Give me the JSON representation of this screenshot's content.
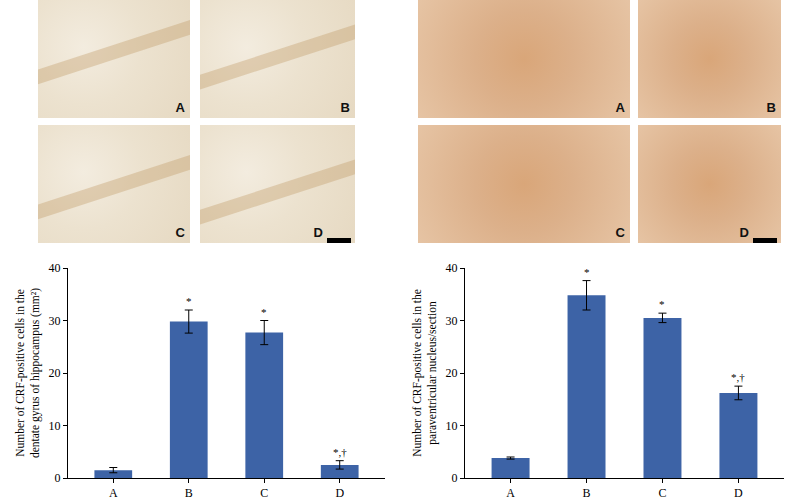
{
  "chart_data": [
    {
      "type": "bar",
      "image_panels": [
        "A",
        "B",
        "C",
        "D"
      ],
      "ylabel": [
        "Number of CRF-positive cells in the",
        "dentate gyrus of hippocampus (mm²)"
      ],
      "categories": [
        "A",
        "B",
        "C",
        "D"
      ],
      "values": [
        1.5,
        29.8,
        27.7,
        2.5
      ],
      "errors": [
        0.5,
        2.2,
        2.3,
        0.8
      ],
      "annotations": [
        {
          "category": "B",
          "text": "*"
        },
        {
          "category": "C",
          "text": "*"
        },
        {
          "category": "D",
          "text": "*,†"
        }
      ],
      "color": "#3d63a6",
      "ylim": [
        0,
        40
      ],
      "yticks": [
        0,
        10,
        20,
        30,
        40
      ],
      "grid": false
    },
    {
      "type": "bar",
      "image_panels": [
        "A",
        "B",
        "C",
        "D"
      ],
      "ylabel": [
        "Number of CRF-positive cells in the",
        "paraventricular nucleus/section"
      ],
      "categories": [
        "A",
        "B",
        "C",
        "D"
      ],
      "values": [
        3.8,
        34.8,
        30.5,
        16.2
      ],
      "errors": [
        0.2,
        2.8,
        0.9,
        1.3
      ],
      "annotations": [
        {
          "category": "B",
          "text": "*"
        },
        {
          "category": "C",
          "text": "*"
        },
        {
          "category": "D",
          "text": "*,†"
        }
      ],
      "color": "#3d63a6",
      "ylim": [
        0,
        40
      ],
      "yticks": [
        0,
        10,
        20,
        30,
        40
      ],
      "grid": false
    }
  ]
}
